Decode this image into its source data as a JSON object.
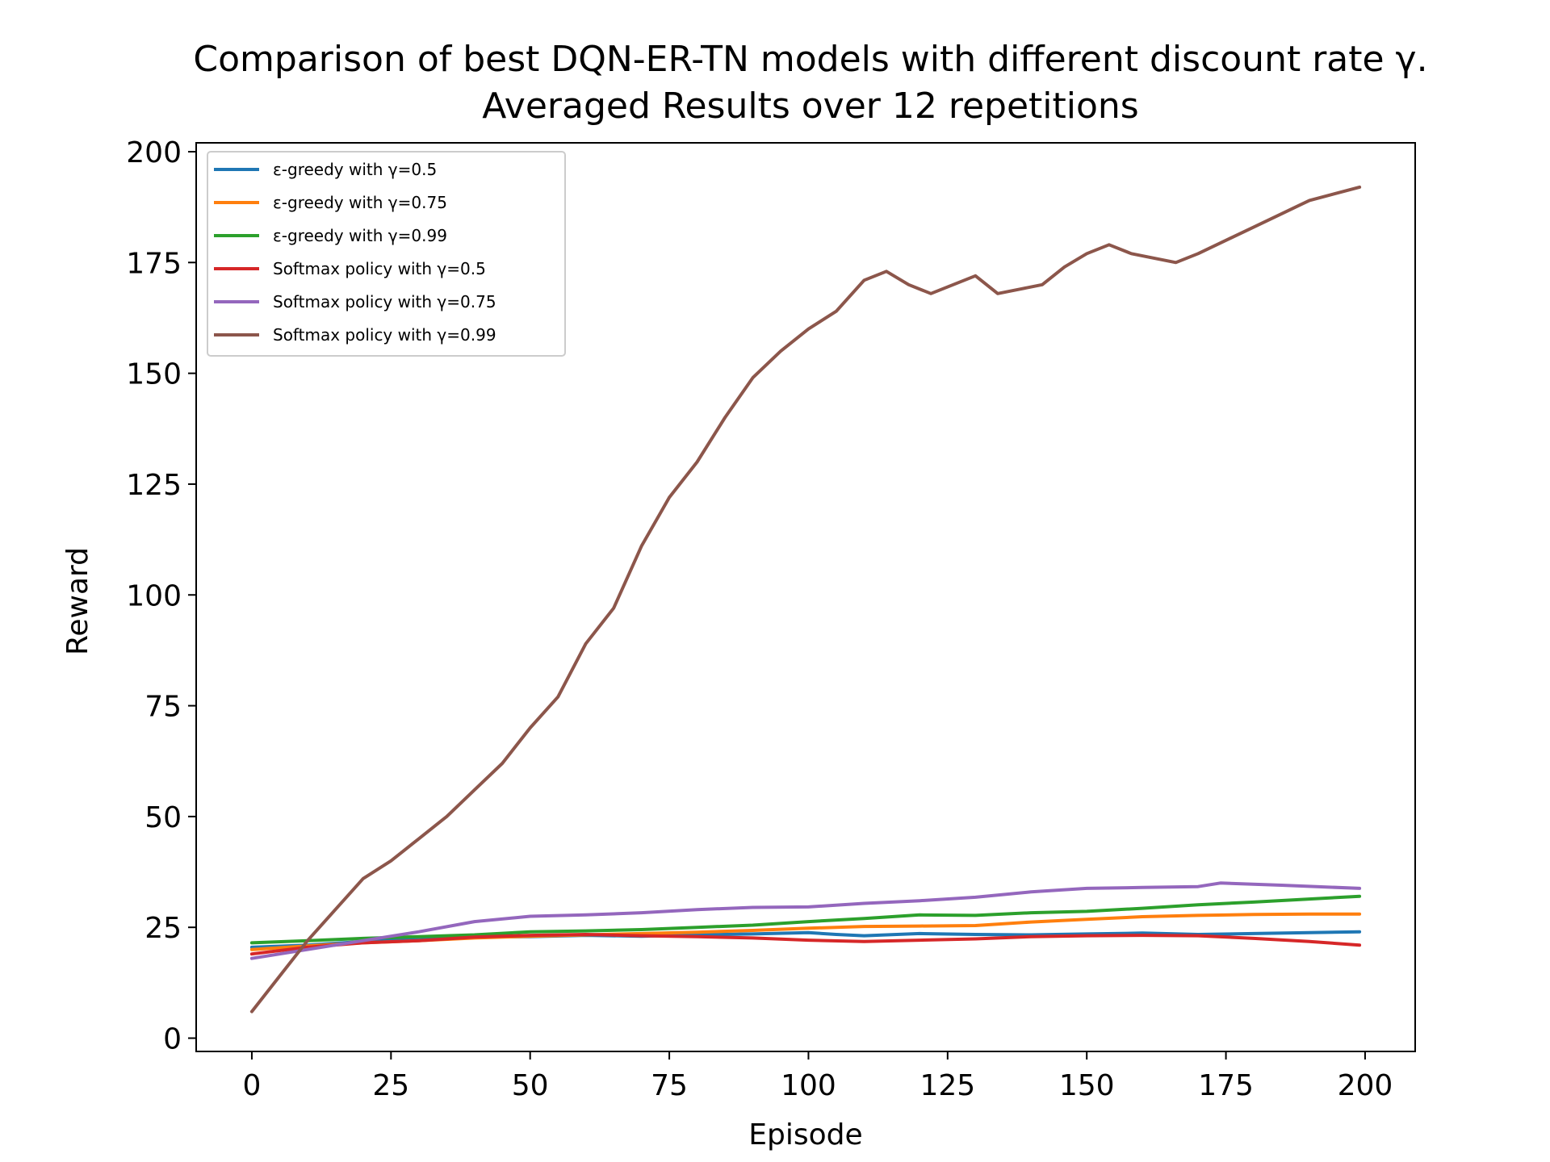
{
  "chart_data": {
    "type": "line",
    "title": "Comparison of best DQN-ER-TN models with different discount rate γ.",
    "subtitle": "Averaged Results over 12 repetitions",
    "xlabel": "Episode",
    "ylabel": "Reward",
    "xlim": [
      -10,
      209
    ],
    "ylim": [
      -3,
      202
    ],
    "xticks": [
      0,
      25,
      50,
      75,
      100,
      125,
      150,
      175,
      200
    ],
    "yticks": [
      0,
      25,
      50,
      75,
      100,
      125,
      150,
      175,
      200
    ],
    "grid": false,
    "legend_position": "upper-left",
    "series": [
      {
        "name": "ε-greedy with γ=0.5",
        "color": "#1f77b4",
        "x": [
          0,
          10,
          20,
          30,
          40,
          50,
          60,
          70,
          80,
          90,
          100,
          105,
          110,
          120,
          130,
          140,
          150,
          160,
          170,
          180,
          190,
          199
        ],
        "y": [
          20.5,
          21.0,
          21.8,
          22.3,
          22.8,
          22.9,
          23.2,
          23.0,
          23.3,
          23.5,
          23.8,
          23.4,
          23.1,
          23.6,
          23.4,
          23.3,
          23.5,
          23.7,
          23.4,
          23.6,
          23.8,
          24.0
        ]
      },
      {
        "name": "ε-greedy with γ=0.75",
        "color": "#ff7f0e",
        "x": [
          0,
          10,
          20,
          30,
          40,
          50,
          60,
          70,
          80,
          90,
          100,
          110,
          120,
          130,
          140,
          150,
          160,
          170,
          180,
          190,
          199
        ],
        "y": [
          20.0,
          20.8,
          21.5,
          22.0,
          22.6,
          23.0,
          23.3,
          23.6,
          23.9,
          24.3,
          24.8,
          25.2,
          25.3,
          25.4,
          26.2,
          26.8,
          27.4,
          27.7,
          27.9,
          28.0,
          28.0
        ]
      },
      {
        "name": "ε-greedy with γ=0.99",
        "color": "#2ca02c",
        "x": [
          0,
          10,
          20,
          30,
          40,
          50,
          60,
          70,
          80,
          90,
          100,
          110,
          120,
          130,
          140,
          150,
          160,
          170,
          180,
          190,
          199
        ],
        "y": [
          21.5,
          22.0,
          22.5,
          22.9,
          23.3,
          24.0,
          24.2,
          24.5,
          25.0,
          25.5,
          26.3,
          27.0,
          27.8,
          27.7,
          28.3,
          28.6,
          29.3,
          30.1,
          30.7,
          31.4,
          32.0
        ]
      },
      {
        "name": "Softmax policy with γ=0.5",
        "color": "#d62728",
        "x": [
          0,
          10,
          20,
          30,
          40,
          50,
          60,
          70,
          80,
          90,
          100,
          110,
          120,
          130,
          140,
          150,
          160,
          170,
          180,
          190,
          199
        ],
        "y": [
          19.0,
          20.5,
          21.5,
          22.0,
          22.8,
          23.2,
          23.4,
          23.1,
          22.9,
          22.6,
          22.1,
          21.8,
          22.1,
          22.4,
          22.9,
          23.1,
          23.2,
          23.1,
          22.5,
          21.8,
          21.0
        ]
      },
      {
        "name": "Softmax policy with γ=0.75",
        "color": "#9467bd",
        "x": [
          0,
          10,
          20,
          30,
          40,
          50,
          60,
          70,
          80,
          90,
          100,
          110,
          120,
          130,
          140,
          150,
          160,
          170,
          174,
          185,
          199
        ],
        "y": [
          18.0,
          20.0,
          22.0,
          24.0,
          26.3,
          27.5,
          27.8,
          28.3,
          29.0,
          29.5,
          29.6,
          30.4,
          31.0,
          31.8,
          33.0,
          33.8,
          34.0,
          34.2,
          35.0,
          34.5,
          33.8
        ]
      },
      {
        "name": "Softmax policy with γ=0.99",
        "color": "#8c564b",
        "x": [
          0,
          5,
          10,
          15,
          20,
          25,
          30,
          35,
          40,
          45,
          50,
          55,
          60,
          65,
          70,
          75,
          80,
          85,
          90,
          95,
          100,
          105,
          110,
          114,
          118,
          122,
          126,
          130,
          134,
          138,
          142,
          146,
          150,
          154,
          158,
          162,
          166,
          170,
          175,
          180,
          185,
          190,
          199
        ],
        "y": [
          6,
          14,
          22,
          29,
          36,
          40,
          45,
          50,
          56,
          62,
          70,
          77,
          89,
          97,
          111,
          122,
          130,
          140,
          149,
          155,
          160,
          164,
          171,
          173,
          170,
          168,
          170,
          172,
          168,
          169,
          170,
          174,
          177,
          179,
          177,
          176,
          175,
          177,
          180,
          183,
          186,
          189,
          192
        ]
      }
    ]
  }
}
